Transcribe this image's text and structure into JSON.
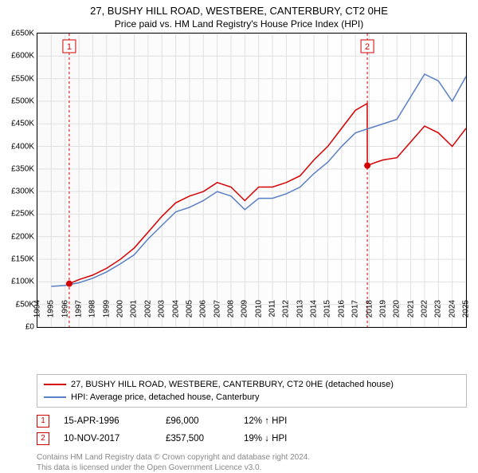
{
  "title": "27, BUSHY HILL ROAD, WESTBERE, CANTERBURY, CT2 0HE",
  "subtitle": "Price paid vs. HM Land Registry's House Price Index (HPI)",
  "chart": {
    "type": "line",
    "background_color": "#fafafa",
    "grid_color": "#e0e0e0",
    "axis_color": "#000000",
    "ylabel_prefix": "£",
    "ylabel_suffix": "K",
    "ylim": [
      0,
      650
    ],
    "ytick_step": 50,
    "xlim": [
      1994,
      2025
    ],
    "xtick_step": 1,
    "label_fontsize": 10,
    "series": [
      {
        "name": "27, BUSHY HILL ROAD, WESTBERE, CANTERBURY, CT2 0HE (detached house)",
        "color": "#d40000",
        "line_width": 1.5,
        "points": [
          [
            1996.3,
            96
          ],
          [
            1997,
            105
          ],
          [
            1998,
            115
          ],
          [
            1999,
            130
          ],
          [
            2000,
            150
          ],
          [
            2001,
            175
          ],
          [
            2002,
            210
          ],
          [
            2003,
            245
          ],
          [
            2004,
            275
          ],
          [
            2005,
            290
          ],
          [
            2006,
            300
          ],
          [
            2007,
            320
          ],
          [
            2008,
            310
          ],
          [
            2009,
            280
          ],
          [
            2010,
            310
          ],
          [
            2011,
            310
          ],
          [
            2012,
            320
          ],
          [
            2013,
            335
          ],
          [
            2014,
            370
          ],
          [
            2015,
            400
          ],
          [
            2016,
            440
          ],
          [
            2017,
            480
          ],
          [
            2017.85,
            495
          ],
          [
            2017.86,
            357.5
          ],
          [
            2018.5,
            365
          ],
          [
            2019,
            370
          ],
          [
            2020,
            375
          ],
          [
            2021,
            410
          ],
          [
            2022,
            445
          ],
          [
            2023,
            430
          ],
          [
            2024,
            400
          ],
          [
            2025,
            440
          ]
        ]
      },
      {
        "name": "HPI: Average price, detached house, Canterbury",
        "color": "#5a7fc4",
        "line_width": 1.5,
        "points": [
          [
            1995,
            90
          ],
          [
            1996,
            92
          ],
          [
            1997,
            98
          ],
          [
            1998,
            108
          ],
          [
            1999,
            122
          ],
          [
            2000,
            140
          ],
          [
            2001,
            160
          ],
          [
            2002,
            195
          ],
          [
            2003,
            225
          ],
          [
            2004,
            255
          ],
          [
            2005,
            265
          ],
          [
            2006,
            280
          ],
          [
            2007,
            300
          ],
          [
            2008,
            290
          ],
          [
            2009,
            260
          ],
          [
            2010,
            285
          ],
          [
            2011,
            285
          ],
          [
            2012,
            295
          ],
          [
            2013,
            310
          ],
          [
            2014,
            340
          ],
          [
            2015,
            365
          ],
          [
            2016,
            400
          ],
          [
            2017,
            430
          ],
          [
            2018,
            440
          ],
          [
            2019,
            450
          ],
          [
            2020,
            460
          ],
          [
            2021,
            510
          ],
          [
            2022,
            560
          ],
          [
            2023,
            545
          ],
          [
            2024,
            500
          ],
          [
            2025,
            555
          ]
        ]
      }
    ],
    "sale_markers": [
      {
        "n": "1",
        "x": 1996.3,
        "y": 96,
        "color": "#d40000"
      },
      {
        "n": "2",
        "x": 2017.86,
        "y": 357.5,
        "color": "#d40000"
      }
    ],
    "vertical_lines": [
      {
        "x": 1996.3,
        "color": "#d40000",
        "dash": "3,3"
      },
      {
        "x": 2017.86,
        "color": "#d40000",
        "dash": "3,3"
      }
    ]
  },
  "legend": {
    "items": [
      {
        "color": "#d40000",
        "label": "27, BUSHY HILL ROAD, WESTBERE, CANTERBURY, CT2 0HE (detached house)"
      },
      {
        "color": "#5a7fc4",
        "label": "HPI: Average price, detached house, Canterbury"
      }
    ]
  },
  "sales": [
    {
      "n": "1",
      "color": "#d40000",
      "date": "15-APR-1996",
      "price": "£96,000",
      "diff": "12% ↑ HPI"
    },
    {
      "n": "2",
      "color": "#d40000",
      "date": "10-NOV-2017",
      "price": "£357,500",
      "diff": "19% ↓ HPI"
    }
  ],
  "footer": {
    "line1": "Contains HM Land Registry data © Crown copyright and database right 2024.",
    "line2": "This data is licensed under the Open Government Licence v3.0."
  }
}
